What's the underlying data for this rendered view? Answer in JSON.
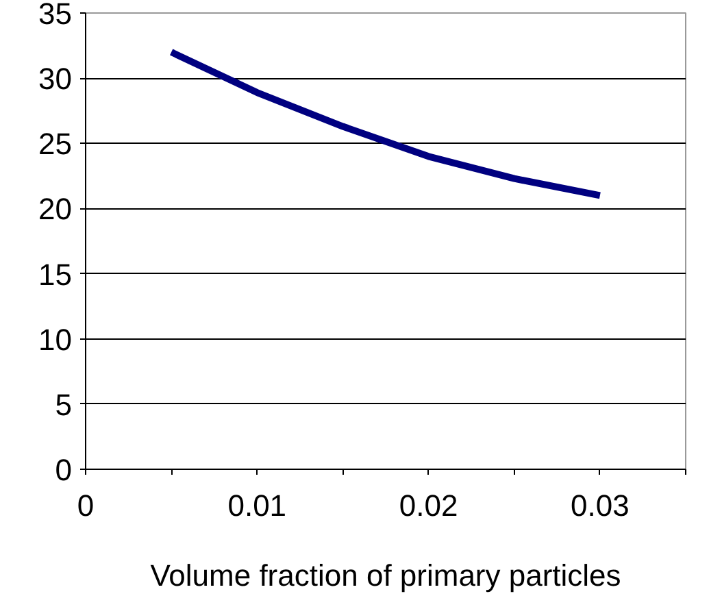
{
  "chart_data": {
    "type": "line",
    "xlabel": "Volume fraction of primary particles",
    "x": [
      0.005,
      0.01,
      0.015,
      0.02,
      0.025,
      0.03
    ],
    "series": [
      {
        "color": "#000080",
        "values": [
          32,
          28.9,
          26.3,
          24.0,
          22.3,
          21.0
        ]
      }
    ],
    "xlim": [
      0,
      0.035
    ],
    "xticks": [
      0,
      {
        "value": 0.005,
        "label": null
      },
      0.01,
      {
        "value": 0.015,
        "label": null
      },
      0.02,
      {
        "value": 0.025,
        "label": null
      },
      0.03,
      {
        "value": 0.035,
        "label": null
      }
    ],
    "ylim": [
      0,
      35
    ],
    "yticks": [
      0,
      5,
      10,
      15,
      20,
      25,
      30,
      35
    ],
    "grid": "y",
    "marker": "none",
    "line_style": "solid"
  }
}
